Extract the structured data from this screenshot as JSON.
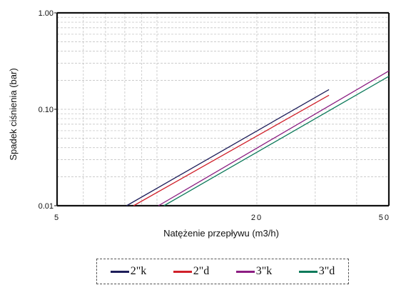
{
  "chart_data": {
    "type": "line",
    "xlabel": "Natężenie przepływu (m3/h)",
    "ylabel": "Spadek ciśnienia  (bar)",
    "xscale": "log",
    "yscale": "log",
    "xlim": [
      5,
      50
    ],
    "ylim": [
      0.01,
      1
    ],
    "x_ticks": [
      "5",
      "20",
      "50"
    ],
    "y_ticks": [
      "1.00",
      "0.10",
      "0.01"
    ],
    "grid": true,
    "legend_position": "bottom",
    "series": [
      {
        "name": "2\"k",
        "color": "#1e1e5a",
        "x": [
          8.1,
          33
        ],
        "y": [
          0.01,
          0.16
        ]
      },
      {
        "name": "2\"d",
        "color": "#d0202a",
        "x": [
          8.5,
          33
        ],
        "y": [
          0.01,
          0.14
        ]
      },
      {
        "name": "3\"k",
        "color": "#8c1e82",
        "x": [
          10.1,
          50
        ],
        "y": [
          0.01,
          0.25
        ]
      },
      {
        "name": "3\"d",
        "color": "#0c7a5a",
        "x": [
          10.5,
          50
        ],
        "y": [
          0.01,
          0.22
        ]
      }
    ]
  }
}
